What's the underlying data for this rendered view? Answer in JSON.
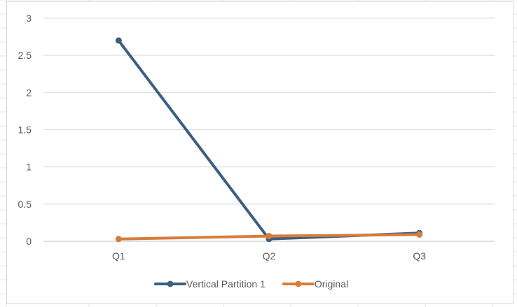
{
  "chart_data": {
    "type": "line",
    "title": "",
    "xlabel": "",
    "ylabel": "",
    "categories": [
      "Q1",
      "Q2",
      "Q3"
    ],
    "ylim": [
      0,
      3
    ],
    "yticks": [
      0,
      0.5,
      1,
      1.5,
      2,
      2.5,
      3
    ],
    "ytick_labels": [
      "0",
      "0.5",
      "1",
      "1.5",
      "2",
      "2.5",
      "3"
    ],
    "grid": true,
    "legend_position": "bottom",
    "series": [
      {
        "name": "Vertical Partition 1",
        "color": "#3b5f80",
        "values": [
          2.7,
          0.03,
          0.11
        ]
      },
      {
        "name": "Original",
        "color": "#d97b3a",
        "values": [
          0.03,
          0.07,
          0.09
        ]
      }
    ]
  }
}
